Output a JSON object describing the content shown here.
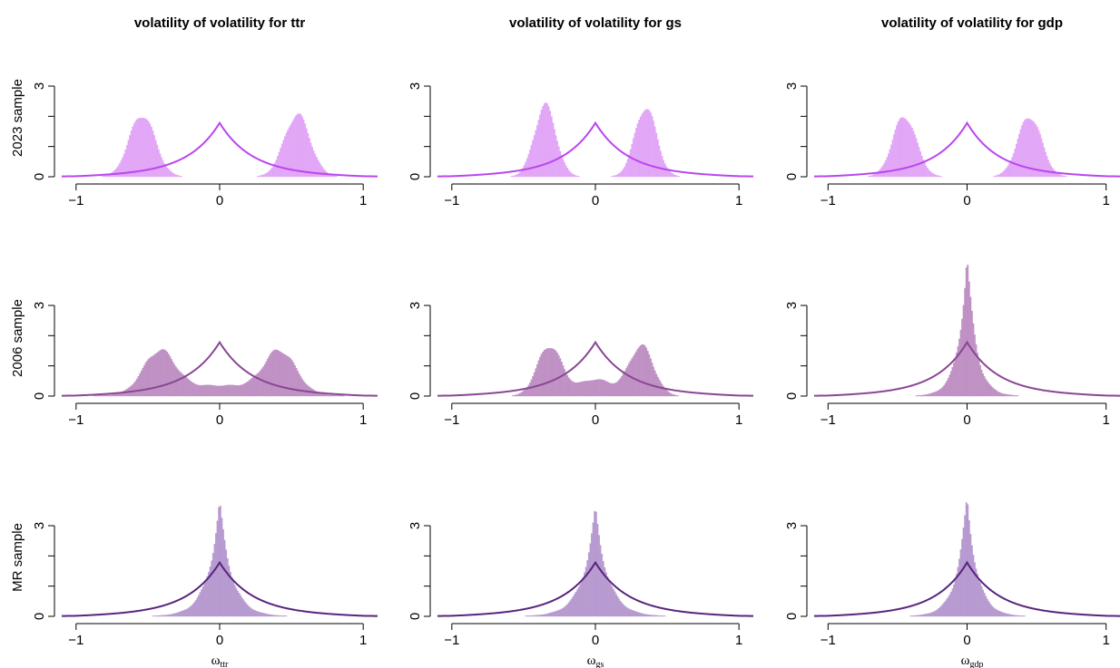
{
  "figure": {
    "column_titles": [
      "volatility of volatility for ttr",
      "volatility of volatility for gs",
      "volatility of volatility for gdp"
    ],
    "row_labels": [
      "2023 sample",
      "2006 sample",
      "MR sample"
    ],
    "x_labels": [
      {
        "base": "ω",
        "sub": "ttr"
      },
      {
        "base": "ω",
        "sub": "gs"
      },
      {
        "base": "ω",
        "sub": "gdp"
      }
    ],
    "row_colors": {
      "2023 sample": {
        "fill": "#e2a6f7",
        "line": "#bb45ee"
      },
      "2006 sample": {
        "fill": "#bf91c4",
        "line": "#8a4694"
      },
      "MR sample": {
        "fill": "#b69ad0",
        "line": "#58247c"
      }
    }
  },
  "chart_data": [
    {
      "type": "area",
      "panel": "2023 sample / ttr",
      "xlim": [
        -1.1,
        1.1
      ],
      "ylim": [
        0,
        3
      ],
      "xticks": [
        "−1",
        "0",
        "1"
      ],
      "yticks": [
        "0",
        "3"
      ],
      "histogram_modes": [
        {
          "center": -0.54,
          "height": 2.05,
          "width": 0.09
        },
        {
          "center": 0.54,
          "height": 2.05,
          "width": 0.09
        }
      ],
      "prior_peak": 1.8
    },
    {
      "type": "area",
      "panel": "2023 sample / gs",
      "xlim": [
        -1.1,
        1.1
      ],
      "ylim": [
        0,
        3
      ],
      "xticks": [
        "−1",
        "0",
        "1"
      ],
      "yticks": [
        "0",
        "3"
      ],
      "histogram_modes": [
        {
          "center": -0.35,
          "height": 2.35,
          "width": 0.075
        },
        {
          "center": 0.35,
          "height": 2.3,
          "width": 0.075
        }
      ],
      "prior_peak": 1.8
    },
    {
      "type": "area",
      "panel": "2023 sample / gdp",
      "xlim": [
        -1.1,
        1.1
      ],
      "ylim": [
        0,
        3
      ],
      "xticks": [
        "−1",
        "0",
        "1"
      ],
      "yticks": [
        "0",
        "3"
      ],
      "histogram_modes": [
        {
          "center": -0.45,
          "height": 2.0,
          "width": 0.085
        },
        {
          "center": 0.45,
          "height": 2.0,
          "width": 0.085
        }
      ],
      "prior_peak": 1.8
    },
    {
      "type": "area",
      "panel": "2006 sample / ttr",
      "xlim": [
        -1.1,
        1.1
      ],
      "ylim": [
        0,
        3
      ],
      "xticks": [
        "−1",
        "0",
        "1"
      ],
      "yticks": [
        "0",
        "3"
      ],
      "histogram_modes": [
        {
          "center": -0.42,
          "height": 1.35,
          "width": 0.11
        },
        {
          "center": 0.42,
          "height": 1.35,
          "width": 0.11
        },
        {
          "center": 0.0,
          "height": 0.35,
          "width": 0.35
        }
      ],
      "prior_peak": 1.8
    },
    {
      "type": "area",
      "panel": "2006 sample / gs",
      "xlim": [
        -1.1,
        1.1
      ],
      "ylim": [
        0,
        3
      ],
      "xticks": [
        "−1",
        "0",
        "1"
      ],
      "yticks": [
        "0",
        "3"
      ],
      "histogram_modes": [
        {
          "center": -0.32,
          "height": 1.65,
          "width": 0.085
        },
        {
          "center": 0.32,
          "height": 1.65,
          "width": 0.085
        },
        {
          "center": 0.0,
          "height": 0.55,
          "width": 0.12
        }
      ],
      "prior_peak": 1.8
    },
    {
      "type": "area",
      "panel": "2006 sample / gdp",
      "xlim": [
        -1.1,
        1.1
      ],
      "ylim": [
        0,
        3
      ],
      "xticks": [
        "−1",
        "0",
        "1"
      ],
      "yticks": [
        "0",
        "3"
      ],
      "histogram_laplace": {
        "height": 4.6,
        "scale": 0.065
      },
      "prior_peak": 1.8
    },
    {
      "type": "area",
      "panel": "MR sample / ttr",
      "xlim": [
        -1.1,
        1.1
      ],
      "ylim": [
        0,
        3
      ],
      "xticks": [
        "−1",
        "0",
        "1"
      ],
      "yticks": [
        "0",
        "3"
      ],
      "histogram_laplace": {
        "height": 3.7,
        "scale": 0.085
      },
      "prior_peak": 1.8
    },
    {
      "type": "area",
      "panel": "MR sample / gs",
      "xlim": [
        -1.1,
        1.1
      ],
      "ylim": [
        0,
        3
      ],
      "xticks": [
        "−1",
        "0",
        "1"
      ],
      "yticks": [
        "0",
        "3"
      ],
      "histogram_laplace": {
        "height": 3.5,
        "scale": 0.09
      },
      "prior_peak": 1.8
    },
    {
      "type": "area",
      "panel": "MR sample / gdp",
      "xlim": [
        -1.1,
        1.1
      ],
      "ylim": [
        0,
        3
      ],
      "xticks": [
        "−1",
        "0",
        "1"
      ],
      "yticks": [
        "0",
        "3"
      ],
      "histogram_laplace": {
        "height": 3.9,
        "scale": 0.075
      },
      "prior_peak": 1.8
    }
  ]
}
